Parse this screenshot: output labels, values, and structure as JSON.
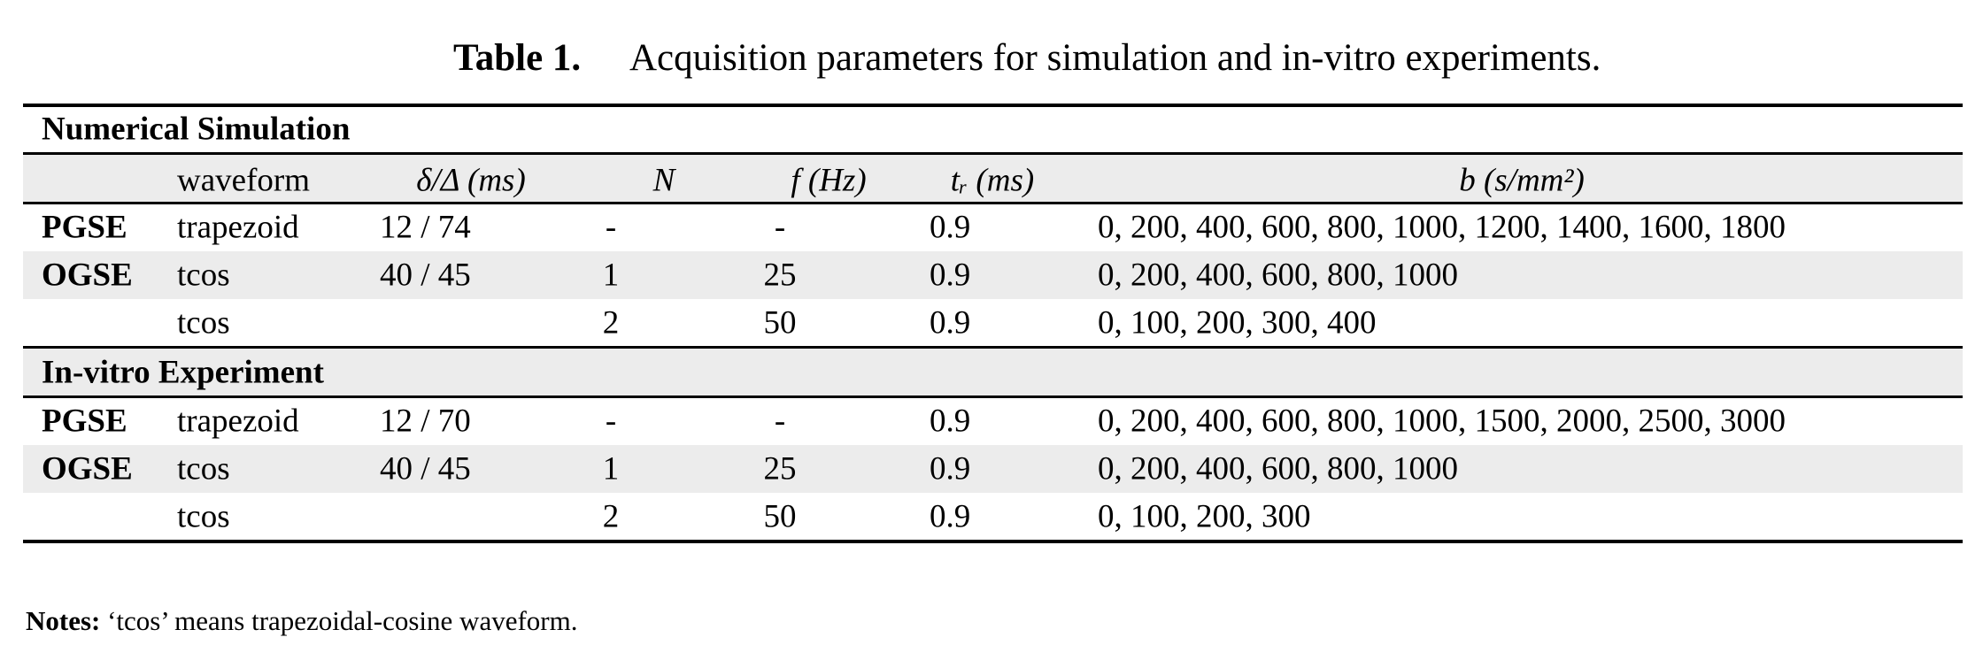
{
  "caption": {
    "label": "Table 1.",
    "text": "Acquisition parameters for simulation and in-vitro experiments."
  },
  "table": {
    "header": [
      "",
      "waveform",
      "δ/Δ (ms)",
      "N",
      "f (Hz)",
      "tᵣ (ms)",
      "b (s/mm²)"
    ],
    "sections": [
      {
        "title": "Numerical Simulation",
        "rows": [
          [
            "PGSE",
            "trapezoid",
            "12 / 74",
            "-",
            "-",
            "0.9",
            "0, 200, 400, 600, 800, 1000, 1200, 1400, 1600, 1800"
          ],
          [
            "OGSE",
            "tcos",
            "40 / 45",
            "1",
            "25",
            "0.9",
            "0, 200, 400, 600, 800, 1000"
          ],
          [
            "",
            "tcos",
            "",
            "2",
            "50",
            "0.9",
            "0, 100, 200, 300, 400"
          ]
        ]
      },
      {
        "title": "In-vitro Experiment",
        "rows": [
          [
            "PGSE",
            "trapezoid",
            "12 / 70",
            "-",
            "-",
            "0.9",
            "0, 200, 400, 600, 800, 1000, 1500, 2000, 2500, 3000"
          ],
          [
            "OGSE",
            "tcos",
            "40 / 45",
            "1",
            "25",
            "0.9",
            "0, 200, 400, 600, 800, 1000"
          ],
          [
            "",
            "tcos",
            "",
            "2",
            "50",
            "0.9",
            "0, 100, 200, 300"
          ]
        ]
      }
    ]
  },
  "notes": {
    "label": "Notes:",
    "text": "‘tcos’ means trapezoidal-cosine waveform."
  }
}
